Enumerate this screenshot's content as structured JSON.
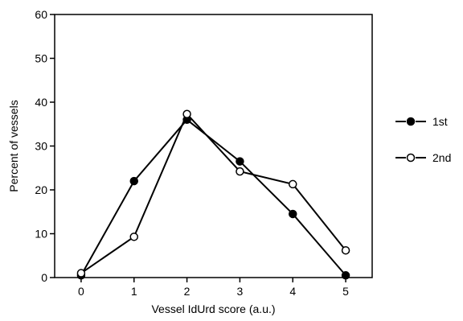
{
  "chart_data": {
    "type": "line",
    "title": "",
    "xlabel": "Vessel IdUrd score (a.u.)",
    "ylabel": "Percent of vessels",
    "xlim": [
      -0.5,
      5.5
    ],
    "ylim": [
      0,
      60
    ],
    "x_ticks": [
      0,
      1,
      2,
      3,
      4,
      5
    ],
    "y_ticks": [
      0,
      10,
      20,
      30,
      40,
      50,
      60
    ],
    "grid": false,
    "legend_position": "right",
    "series": [
      {
        "name": "1st",
        "marker": "filled-circle",
        "color": "#000000",
        "x": [
          0,
          1,
          2,
          3,
          4,
          5
        ],
        "y": [
          0.5,
          22,
          36,
          26.5,
          14.5,
          0.5
        ]
      },
      {
        "name": "2nd",
        "marker": "open-circle",
        "color": "#000000",
        "x": [
          0,
          1,
          2,
          3,
          4,
          5
        ],
        "y": [
          1,
          9.3,
          37.3,
          24.2,
          21.3,
          6.2
        ]
      }
    ]
  }
}
